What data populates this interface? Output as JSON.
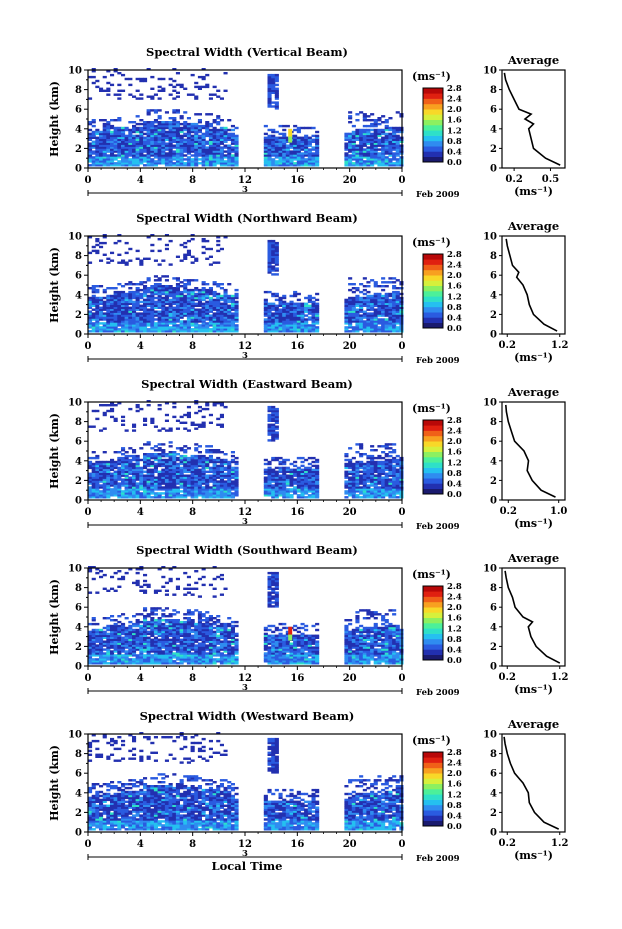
{
  "figure": {
    "date_label": "Feb 2009",
    "day_label": "3",
    "xlabel": "Local Time"
  },
  "colorbar": {
    "unit": "(ms⁻¹)",
    "ticks": [
      "0.0",
      "0.4",
      "0.8",
      "1.2",
      "1.6",
      "2.0",
      "2.4",
      "2.8"
    ],
    "colors": [
      "#1a1a6e",
      "#2230b0",
      "#2a5be0",
      "#2f8cf0",
      "#25c0f0",
      "#2ee0c8",
      "#4cf09a",
      "#8cf060",
      "#d6f03c",
      "#f8d828",
      "#f8a020",
      "#f06018",
      "#e02010",
      "#b80808"
    ]
  },
  "chart_data": [
    {
      "type": "heatmap",
      "title": "Spectral Width (Vertical Beam)",
      "ylabel": "Height (km)",
      "xlabel": "Local Time",
      "xticks": [
        "0",
        "4",
        "8",
        "12",
        "16",
        "20",
        "0"
      ],
      "yticks": [
        "0",
        "2",
        "4",
        "6",
        "8",
        "10"
      ],
      "xlim": [
        0,
        24
      ],
      "ylim": [
        0,
        10
      ],
      "data_gaps_hours": [
        [
          11.2,
          13.2
        ],
        [
          17.5,
          19.5
        ]
      ],
      "colorbar_range": [
        0.0,
        2.8
      ],
      "average_profile": {
        "title": "Average",
        "xlabel": "(ms⁻¹)",
        "xticks": [
          "0.2",
          "0.5"
        ],
        "xlim": [
          0.1,
          0.62
        ],
        "yticks": [
          "0",
          "2",
          "4",
          "6",
          "8",
          "10"
        ],
        "height": [
          0.3,
          1,
          2,
          3,
          4,
          4.5,
          5,
          5.5,
          6,
          7,
          8,
          9,
          9.7
        ],
        "width": [
          0.58,
          0.46,
          0.36,
          0.34,
          0.32,
          0.36,
          0.29,
          0.34,
          0.24,
          0.2,
          0.16,
          0.13,
          0.12
        ]
      }
    },
    {
      "type": "heatmap",
      "title": "Spectral Width (Northward Beam)",
      "ylabel": "Height (km)",
      "xlabel": "Local Time",
      "xticks": [
        "0",
        "4",
        "8",
        "12",
        "16",
        "20",
        "0"
      ],
      "yticks": [
        "0",
        "2",
        "4",
        "6",
        "8",
        "10"
      ],
      "xlim": [
        0,
        24
      ],
      "ylim": [
        0,
        10
      ],
      "data_gaps_hours": [
        [
          11.2,
          13.2
        ],
        [
          17.5,
          19.5
        ]
      ],
      "colorbar_range": [
        0.0,
        2.8
      ],
      "average_profile": {
        "title": "Average",
        "xlabel": "(ms⁻¹)",
        "xticks": [
          "0.2",
          "1.2"
        ],
        "xlim": [
          0.1,
          1.3
        ],
        "yticks": [
          "0",
          "2",
          "4",
          "6",
          "8",
          "10"
        ],
        "height": [
          0.3,
          1,
          2,
          3,
          4,
          5,
          5.8,
          6.3,
          7,
          8,
          9,
          9.7
        ],
        "width": [
          1.15,
          0.9,
          0.7,
          0.62,
          0.58,
          0.5,
          0.38,
          0.42,
          0.3,
          0.25,
          0.2,
          0.18
        ]
      }
    },
    {
      "type": "heatmap",
      "title": "Spectral Width (Eastward Beam)",
      "ylabel": "Height (km)",
      "xlabel": "Local Time",
      "xticks": [
        "0",
        "4",
        "8",
        "12",
        "16",
        "20",
        "0"
      ],
      "yticks": [
        "0",
        "2",
        "4",
        "6",
        "8",
        "10"
      ],
      "xlim": [
        0,
        24
      ],
      "ylim": [
        0,
        10
      ],
      "data_gaps_hours": [
        [
          11.2,
          13.2
        ],
        [
          17.5,
          19.5
        ]
      ],
      "colorbar_range": [
        0.0,
        2.8
      ],
      "average_profile": {
        "title": "Average",
        "xlabel": "(ms⁻¹)",
        "xticks": [
          "0.2",
          "1.0"
        ],
        "xlim": [
          0.1,
          1.1
        ],
        "yticks": [
          "0",
          "2",
          "4",
          "6",
          "8",
          "10"
        ],
        "height": [
          0.3,
          1,
          2,
          3,
          4,
          5,
          6,
          7,
          8,
          9,
          9.7
        ],
        "width": [
          0.95,
          0.72,
          0.58,
          0.5,
          0.52,
          0.45,
          0.3,
          0.25,
          0.2,
          0.17,
          0.16
        ]
      }
    },
    {
      "type": "heatmap",
      "title": "Spectral Width (Southward Beam)",
      "ylabel": "Height (km)",
      "xlabel": "Local Time",
      "xticks": [
        "0",
        "4",
        "8",
        "12",
        "16",
        "20",
        "0"
      ],
      "yticks": [
        "0",
        "2",
        "4",
        "6",
        "8",
        "10"
      ],
      "xlim": [
        0,
        24
      ],
      "ylim": [
        0,
        10
      ],
      "data_gaps_hours": [
        [
          11.2,
          13.2
        ],
        [
          17.5,
          19.5
        ]
      ],
      "colorbar_range": [
        0.0,
        2.8
      ],
      "average_profile": {
        "title": "Average",
        "xlabel": "(ms⁻¹)",
        "xticks": [
          "0.2",
          "1.2"
        ],
        "xlim": [
          0.1,
          1.3
        ],
        "yticks": [
          "0",
          "2",
          "4",
          "6",
          "8",
          "10"
        ],
        "height": [
          0.3,
          1,
          2,
          3,
          4,
          4.5,
          5,
          6,
          7,
          8,
          9,
          9.7
        ],
        "width": [
          1.2,
          0.95,
          0.75,
          0.65,
          0.6,
          0.68,
          0.5,
          0.35,
          0.3,
          0.22,
          0.18,
          0.16
        ]
      }
    },
    {
      "type": "heatmap",
      "title": "Spectral Width (Westward Beam)",
      "ylabel": "Height (km)",
      "xlabel": "Local Time",
      "xticks": [
        "0",
        "4",
        "8",
        "12",
        "16",
        "20",
        "0"
      ],
      "yticks": [
        "0",
        "2",
        "4",
        "6",
        "8",
        "10"
      ],
      "xlim": [
        0,
        24
      ],
      "ylim": [
        0,
        10
      ],
      "data_gaps_hours": [
        [
          11.2,
          13.2
        ],
        [
          17.5,
          19.5
        ]
      ],
      "colorbar_range": [
        0.0,
        2.8
      ],
      "average_profile": {
        "title": "Average",
        "xlabel": "(ms⁻¹)",
        "xticks": [
          "0.2",
          "1.2"
        ],
        "xlim": [
          0.1,
          1.3
        ],
        "yticks": [
          "0",
          "2",
          "4",
          "6",
          "8",
          "10"
        ],
        "height": [
          0.3,
          1,
          2,
          3,
          4,
          5,
          5.5,
          6,
          7,
          8,
          9,
          9.7
        ],
        "width": [
          1.18,
          0.9,
          0.72,
          0.62,
          0.6,
          0.5,
          0.42,
          0.34,
          0.26,
          0.2,
          0.16,
          0.14
        ]
      }
    }
  ]
}
